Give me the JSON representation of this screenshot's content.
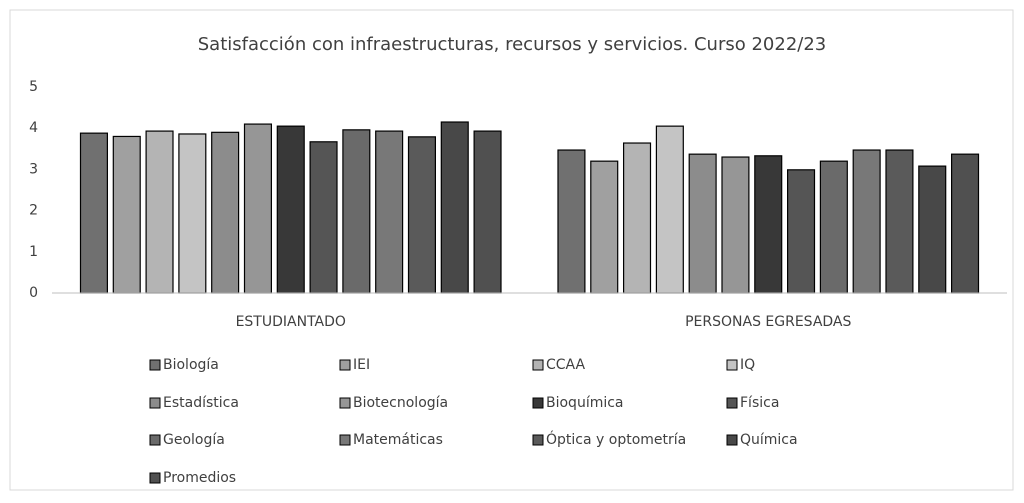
{
  "chart_data": {
    "type": "bar",
    "title": "Satisfacción con infraestructuras, recursos y servicios. Curso 2022/23",
    "categories": [
      "ESTUDIANTADO",
      "PERSONAS EGRESADAS"
    ],
    "series": [
      {
        "name": "Biología",
        "color": "#707070",
        "values": [
          3.88,
          3.47
        ]
      },
      {
        "name": "IEI",
        "color": "#a0a0a0",
        "values": [
          3.8,
          3.2
        ]
      },
      {
        "name": "CCAA",
        "color": "#b4b4b4",
        "values": [
          3.93,
          3.64
        ]
      },
      {
        "name": "IQ",
        "color": "#c4c4c4",
        "values": [
          3.86,
          4.05
        ]
      },
      {
        "name": "Estadística",
        "color": "#8c8c8c",
        "values": [
          3.9,
          3.37
        ]
      },
      {
        "name": "Biotecnología",
        "color": "#969696",
        "values": [
          4.1,
          3.3
        ]
      },
      {
        "name": "Bioquímica",
        "color": "#383838",
        "values": [
          4.05,
          3.33
        ]
      },
      {
        "name": "Física",
        "color": "#555555",
        "values": [
          3.67,
          2.99
        ]
      },
      {
        "name": "Geología",
        "color": "#6a6a6a",
        "values": [
          3.96,
          3.2
        ]
      },
      {
        "name": "Matemáticas",
        "color": "#787878",
        "values": [
          3.93,
          3.47
        ]
      },
      {
        "name": "Óptica y optometría",
        "color": "#5a5a5a",
        "values": [
          3.79,
          3.47
        ]
      },
      {
        "name": "Química",
        "color": "#484848",
        "values": [
          4.15,
          3.08
        ]
      },
      {
        "name": "Promedios",
        "color": "#505050",
        "values": [
          3.93,
          3.37
        ]
      }
    ],
    "ylim": [
      0,
      5
    ],
    "yticks": [
      0,
      1,
      2,
      3,
      4,
      5
    ],
    "grid": false,
    "legend": "bottom"
  }
}
